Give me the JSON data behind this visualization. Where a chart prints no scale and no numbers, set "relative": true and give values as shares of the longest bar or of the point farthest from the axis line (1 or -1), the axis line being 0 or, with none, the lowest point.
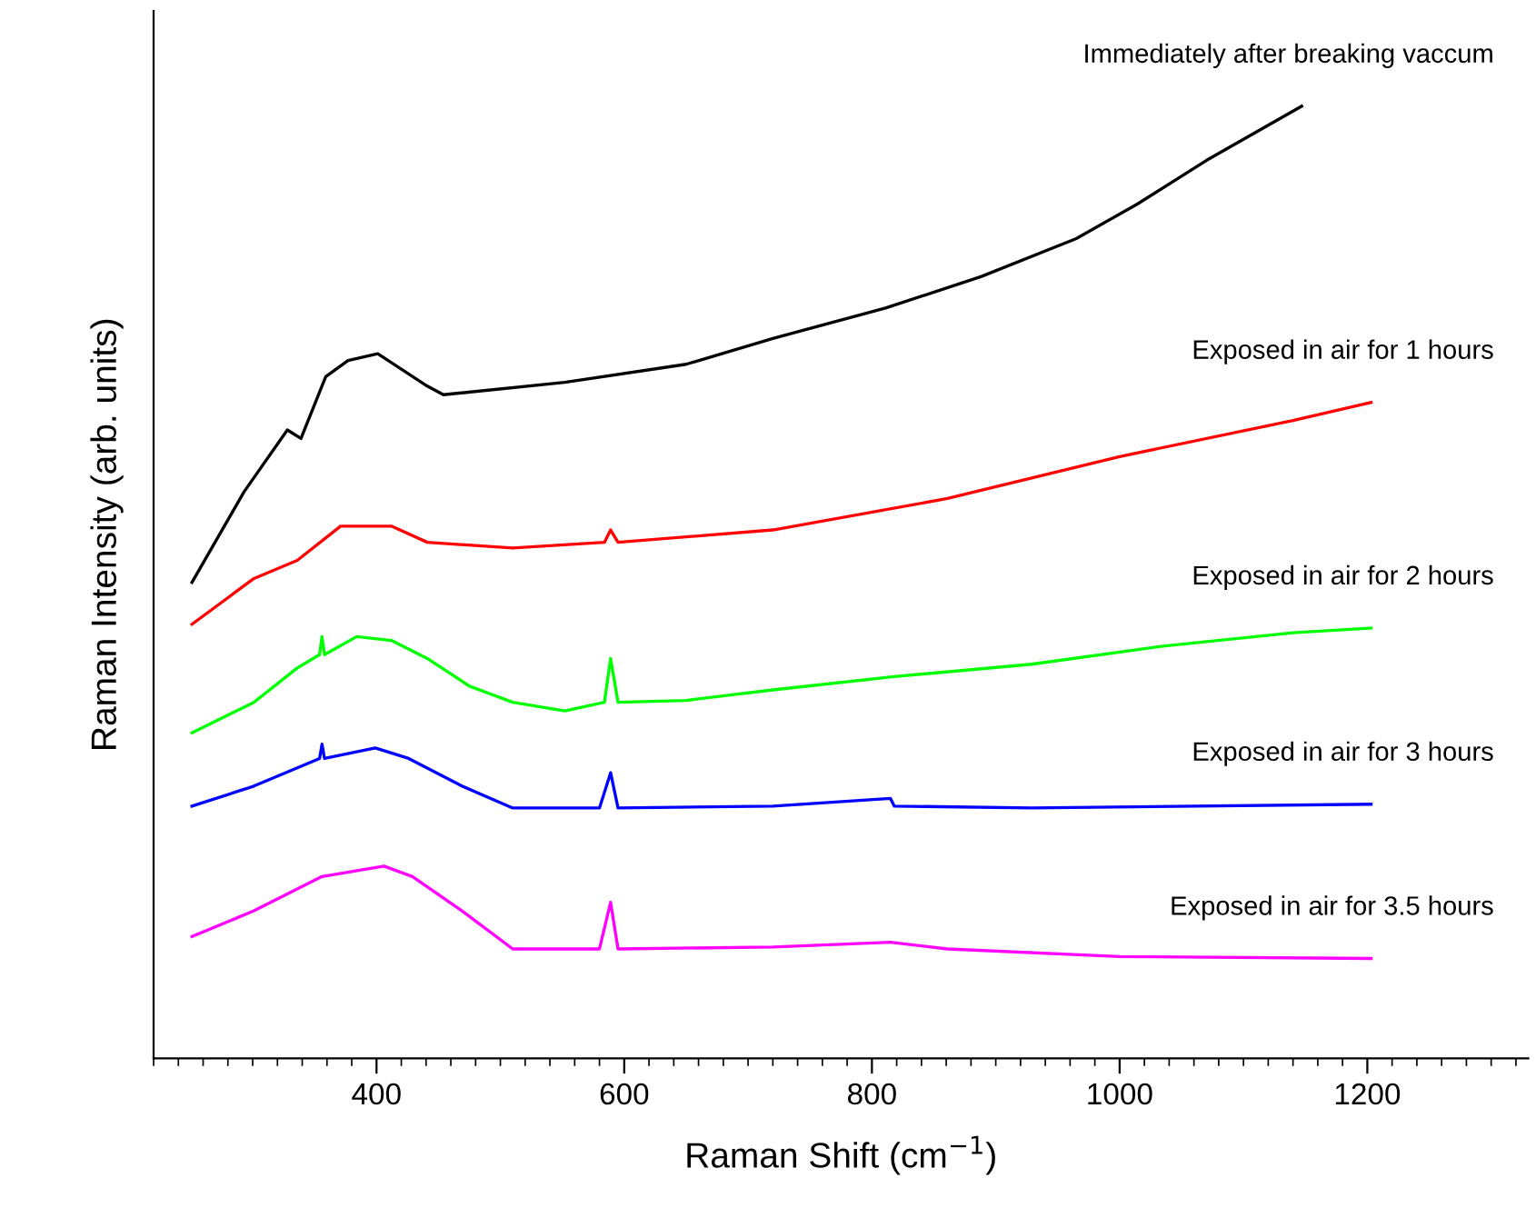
{
  "chart_data": {
    "type": "line",
    "relative": true,
    "xlabel": "Raman Shift (cm$^{−1}$)",
    "ylabel": "Raman Intensity (arb. units)",
    "xlim": [
      220,
      1330
    ],
    "xticks": [
      400,
      600,
      800,
      1000,
      1200
    ],
    "grid": false,
    "legend": false,
    "marker": "none",
    "line_style": "solid",
    "tick_labels": "x",
    "series": [
      {
        "name": "Immediately after breaking vaccum",
        "color": "#000000",
        "x": [
          251,
          293,
          328,
          339,
          359,
          377,
          401,
          441,
          454,
          552,
          650,
          720,
          811,
          888,
          965,
          1014,
          1070,
          1147
        ],
        "values": [
          0.5,
          0.595,
          0.66,
          0.651,
          0.716,
          0.733,
          0.74,
          0.706,
          0.697,
          0.71,
          0.729,
          0.756,
          0.788,
          0.821,
          0.861,
          0.897,
          0.943,
          1.0
        ]
      },
      {
        "name": "Exposed in air for 1 hours",
        "color": "#ff0000",
        "x": [
          251,
          301,
          336,
          371,
          412,
          441,
          510,
          584,
          589,
          595,
          720,
          861,
          1000,
          1140,
          1203
        ],
        "values": [
          0.456,
          0.504,
          0.523,
          0.559,
          0.559,
          0.542,
          0.536,
          0.542,
          0.555,
          0.542,
          0.555,
          0.588,
          0.632,
          0.67,
          0.689
        ]
      },
      {
        "name": "Exposed in air for 2 hours",
        "color": "#00ff00",
        "x": [
          251,
          301,
          336,
          354,
          356,
          358,
          384,
          412,
          441,
          475,
          510,
          552,
          584,
          589,
          595,
          650,
          720,
          818,
          929,
          1035,
          1140,
          1203
        ],
        "values": [
          0.342,
          0.374,
          0.41,
          0.424,
          0.443,
          0.424,
          0.443,
          0.439,
          0.42,
          0.391,
          0.374,
          0.365,
          0.374,
          0.42,
          0.374,
          0.376,
          0.387,
          0.401,
          0.414,
          0.433,
          0.447,
          0.452
        ]
      },
      {
        "name": "Exposed in air for 3 hours",
        "color": "#0000ff",
        "x": [
          251,
          301,
          354,
          356,
          358,
          399,
          426,
          469,
          510,
          580,
          589,
          595,
          720,
          815,
          818,
          929,
          1203
        ],
        "values": [
          0.265,
          0.286,
          0.315,
          0.33,
          0.315,
          0.326,
          0.315,
          0.286,
          0.263,
          0.263,
          0.3,
          0.263,
          0.265,
          0.273,
          0.265,
          0.263,
          0.267
        ]
      },
      {
        "name": "Exposed in air for 3.5 hours",
        "color": "#ff00ff",
        "x": [
          251,
          301,
          356,
          406,
          429,
          469,
          510,
          580,
          589,
          595,
          720,
          815,
          861,
          1000,
          1203
        ],
        "values": [
          0.128,
          0.155,
          0.191,
          0.202,
          0.191,
          0.155,
          0.115,
          0.115,
          0.164,
          0.115,
          0.117,
          0.122,
          0.115,
          0.107,
          0.105
        ]
      }
    ]
  }
}
